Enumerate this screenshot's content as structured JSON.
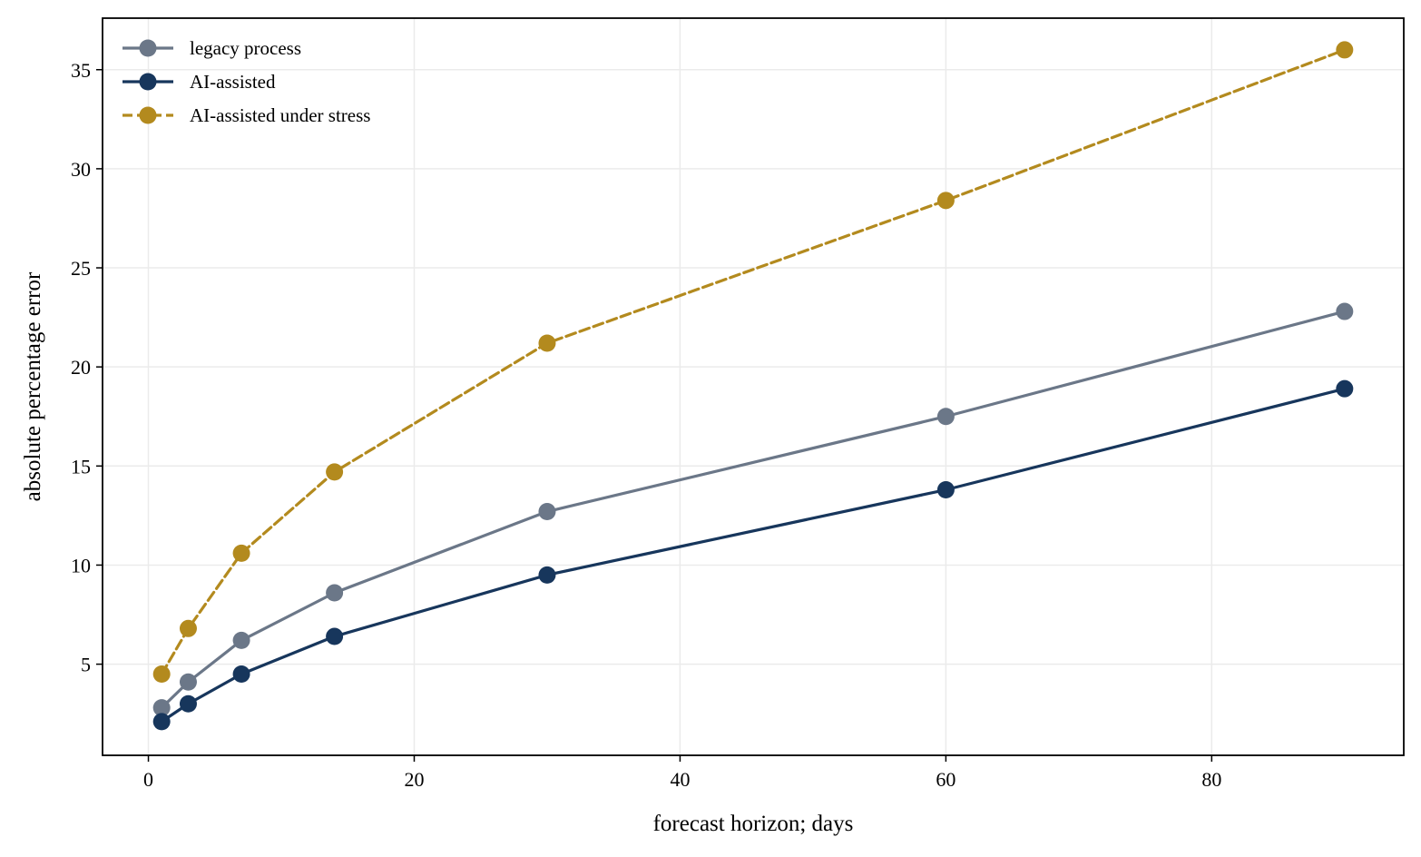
{
  "chart_data": {
    "type": "line",
    "title": "",
    "xlabel": "forecast horizon; days",
    "ylabel": "absolute percentage error",
    "xlim": [
      -3.45,
      94.45
    ],
    "ylim": [
      0.4,
      37.6
    ],
    "xticks": [
      0,
      20,
      40,
      60,
      80
    ],
    "yticks": [
      5,
      10,
      15,
      20,
      25,
      30,
      35
    ],
    "grid": true,
    "legend_position": "top-left",
    "x": [
      1,
      3,
      7,
      14,
      30,
      60,
      90
    ],
    "series": [
      {
        "name": "legacy process",
        "values": [
          2.8,
          4.1,
          6.2,
          8.6,
          12.7,
          17.5,
          22.8
        ],
        "color": "#6b7788",
        "line_style": "solid",
        "marker": "circle"
      },
      {
        "name": "AI-assisted",
        "values": [
          2.1,
          3.0,
          4.5,
          6.4,
          9.5,
          13.8,
          18.9
        ],
        "color": "#17365c",
        "line_style": "solid",
        "marker": "circle"
      },
      {
        "name": "AI-assisted under stress",
        "values": [
          4.5,
          6.8,
          10.6,
          14.7,
          21.2,
          28.4,
          36.0
        ],
        "color": "#b38a1e",
        "line_style": "dashed",
        "marker": "circle"
      }
    ]
  }
}
